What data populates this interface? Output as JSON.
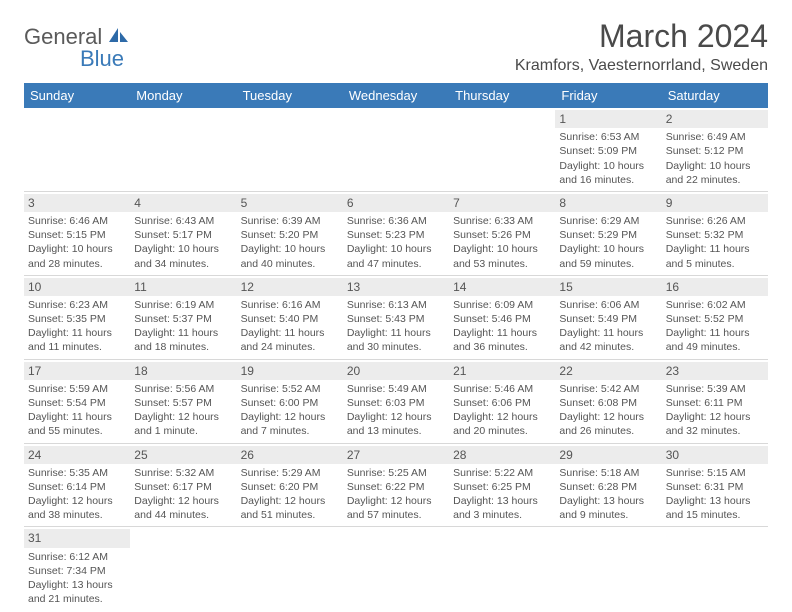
{
  "logo": {
    "general": "General",
    "blue": "Blue"
  },
  "title": "March 2024",
  "location": "Kramfors, Vaesternorrland, Sweden",
  "colors": {
    "header_bg": "#3a7ab8",
    "header_text": "#ffffff",
    "daynum_bg": "#ececec",
    "text": "#555555",
    "border": "#d8d8d8"
  },
  "weekdays": [
    "Sunday",
    "Monday",
    "Tuesday",
    "Wednesday",
    "Thursday",
    "Friday",
    "Saturday"
  ],
  "weeks": [
    [
      null,
      null,
      null,
      null,
      null,
      {
        "n": "1",
        "sr": "Sunrise: 6:53 AM",
        "ss": "Sunset: 5:09 PM",
        "d1": "Daylight: 10 hours",
        "d2": "and 16 minutes."
      },
      {
        "n": "2",
        "sr": "Sunrise: 6:49 AM",
        "ss": "Sunset: 5:12 PM",
        "d1": "Daylight: 10 hours",
        "d2": "and 22 minutes."
      }
    ],
    [
      {
        "n": "3",
        "sr": "Sunrise: 6:46 AM",
        "ss": "Sunset: 5:15 PM",
        "d1": "Daylight: 10 hours",
        "d2": "and 28 minutes."
      },
      {
        "n": "4",
        "sr": "Sunrise: 6:43 AM",
        "ss": "Sunset: 5:17 PM",
        "d1": "Daylight: 10 hours",
        "d2": "and 34 minutes."
      },
      {
        "n": "5",
        "sr": "Sunrise: 6:39 AM",
        "ss": "Sunset: 5:20 PM",
        "d1": "Daylight: 10 hours",
        "d2": "and 40 minutes."
      },
      {
        "n": "6",
        "sr": "Sunrise: 6:36 AM",
        "ss": "Sunset: 5:23 PM",
        "d1": "Daylight: 10 hours",
        "d2": "and 47 minutes."
      },
      {
        "n": "7",
        "sr": "Sunrise: 6:33 AM",
        "ss": "Sunset: 5:26 PM",
        "d1": "Daylight: 10 hours",
        "d2": "and 53 minutes."
      },
      {
        "n": "8",
        "sr": "Sunrise: 6:29 AM",
        "ss": "Sunset: 5:29 PM",
        "d1": "Daylight: 10 hours",
        "d2": "and 59 minutes."
      },
      {
        "n": "9",
        "sr": "Sunrise: 6:26 AM",
        "ss": "Sunset: 5:32 PM",
        "d1": "Daylight: 11 hours",
        "d2": "and 5 minutes."
      }
    ],
    [
      {
        "n": "10",
        "sr": "Sunrise: 6:23 AM",
        "ss": "Sunset: 5:35 PM",
        "d1": "Daylight: 11 hours",
        "d2": "and 11 minutes."
      },
      {
        "n": "11",
        "sr": "Sunrise: 6:19 AM",
        "ss": "Sunset: 5:37 PM",
        "d1": "Daylight: 11 hours",
        "d2": "and 18 minutes."
      },
      {
        "n": "12",
        "sr": "Sunrise: 6:16 AM",
        "ss": "Sunset: 5:40 PM",
        "d1": "Daylight: 11 hours",
        "d2": "and 24 minutes."
      },
      {
        "n": "13",
        "sr": "Sunrise: 6:13 AM",
        "ss": "Sunset: 5:43 PM",
        "d1": "Daylight: 11 hours",
        "d2": "and 30 minutes."
      },
      {
        "n": "14",
        "sr": "Sunrise: 6:09 AM",
        "ss": "Sunset: 5:46 PM",
        "d1": "Daylight: 11 hours",
        "d2": "and 36 minutes."
      },
      {
        "n": "15",
        "sr": "Sunrise: 6:06 AM",
        "ss": "Sunset: 5:49 PM",
        "d1": "Daylight: 11 hours",
        "d2": "and 42 minutes."
      },
      {
        "n": "16",
        "sr": "Sunrise: 6:02 AM",
        "ss": "Sunset: 5:52 PM",
        "d1": "Daylight: 11 hours",
        "d2": "and 49 minutes."
      }
    ],
    [
      {
        "n": "17",
        "sr": "Sunrise: 5:59 AM",
        "ss": "Sunset: 5:54 PM",
        "d1": "Daylight: 11 hours",
        "d2": "and 55 minutes."
      },
      {
        "n": "18",
        "sr": "Sunrise: 5:56 AM",
        "ss": "Sunset: 5:57 PM",
        "d1": "Daylight: 12 hours",
        "d2": "and 1 minute."
      },
      {
        "n": "19",
        "sr": "Sunrise: 5:52 AM",
        "ss": "Sunset: 6:00 PM",
        "d1": "Daylight: 12 hours",
        "d2": "and 7 minutes."
      },
      {
        "n": "20",
        "sr": "Sunrise: 5:49 AM",
        "ss": "Sunset: 6:03 PM",
        "d1": "Daylight: 12 hours",
        "d2": "and 13 minutes."
      },
      {
        "n": "21",
        "sr": "Sunrise: 5:46 AM",
        "ss": "Sunset: 6:06 PM",
        "d1": "Daylight: 12 hours",
        "d2": "and 20 minutes."
      },
      {
        "n": "22",
        "sr": "Sunrise: 5:42 AM",
        "ss": "Sunset: 6:08 PM",
        "d1": "Daylight: 12 hours",
        "d2": "and 26 minutes."
      },
      {
        "n": "23",
        "sr": "Sunrise: 5:39 AM",
        "ss": "Sunset: 6:11 PM",
        "d1": "Daylight: 12 hours",
        "d2": "and 32 minutes."
      }
    ],
    [
      {
        "n": "24",
        "sr": "Sunrise: 5:35 AM",
        "ss": "Sunset: 6:14 PM",
        "d1": "Daylight: 12 hours",
        "d2": "and 38 minutes."
      },
      {
        "n": "25",
        "sr": "Sunrise: 5:32 AM",
        "ss": "Sunset: 6:17 PM",
        "d1": "Daylight: 12 hours",
        "d2": "and 44 minutes."
      },
      {
        "n": "26",
        "sr": "Sunrise: 5:29 AM",
        "ss": "Sunset: 6:20 PM",
        "d1": "Daylight: 12 hours",
        "d2": "and 51 minutes."
      },
      {
        "n": "27",
        "sr": "Sunrise: 5:25 AM",
        "ss": "Sunset: 6:22 PM",
        "d1": "Daylight: 12 hours",
        "d2": "and 57 minutes."
      },
      {
        "n": "28",
        "sr": "Sunrise: 5:22 AM",
        "ss": "Sunset: 6:25 PM",
        "d1": "Daylight: 13 hours",
        "d2": "and 3 minutes."
      },
      {
        "n": "29",
        "sr": "Sunrise: 5:18 AM",
        "ss": "Sunset: 6:28 PM",
        "d1": "Daylight: 13 hours",
        "d2": "and 9 minutes."
      },
      {
        "n": "30",
        "sr": "Sunrise: 5:15 AM",
        "ss": "Sunset: 6:31 PM",
        "d1": "Daylight: 13 hours",
        "d2": "and 15 minutes."
      }
    ],
    [
      {
        "n": "31",
        "sr": "Sunrise: 6:12 AM",
        "ss": "Sunset: 7:34 PM",
        "d1": "Daylight: 13 hours",
        "d2": "and 21 minutes."
      },
      null,
      null,
      null,
      null,
      null,
      null
    ]
  ]
}
